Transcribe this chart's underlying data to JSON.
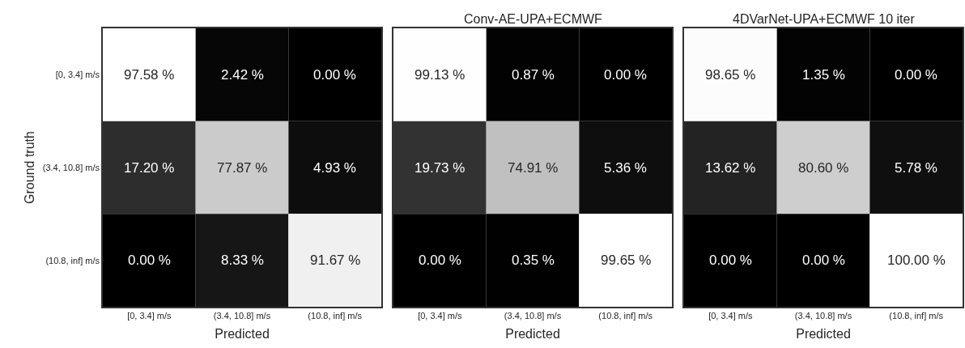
{
  "chart_data": [
    {
      "type": "heatmap",
      "xlabel": "Predicted",
      "ylabel": "Ground truth",
      "categories": [
        "[0, 3.4] m/s",
        "(3.4, 10.8] m/s",
        "(10.8, inf] m/s"
      ],
      "y_categories": [
        "[0, 3.4] m/s",
        "(3.4, 10.8] m/s",
        "(10.8, inf] m/s"
      ],
      "cells": [
        [
          97.58,
          2.42,
          0.0
        ],
        [
          17.2,
          77.87,
          4.93
        ],
        [
          0.0,
          8.33,
          91.67
        ]
      ],
      "cell_labels": [
        [
          "97.58 %",
          "2.42 %",
          "0.00 %"
        ],
        [
          "17.20 %",
          "77.87 %",
          "4.93 %"
        ],
        [
          "0.00 %",
          "8.33 %",
          "91.67 %"
        ]
      ]
    },
    {
      "type": "heatmap",
      "title": "Conv-AE-UPA+ECMWF",
      "xlabel": "Predicted",
      "categories": [
        "[0, 3.4] m/s",
        "(3.4, 10.8] m/s",
        "(10.8, inf] m/s"
      ],
      "y_categories": [
        "[0, 3.4] m/s",
        "(3.4, 10.8] m/s",
        "(10.8, inf] m/s"
      ],
      "tick_labels": "x",
      "cells": [
        [
          99.13,
          0.87,
          0.0
        ],
        [
          19.73,
          74.91,
          5.36
        ],
        [
          0.0,
          0.35,
          99.65
        ]
      ],
      "cell_labels": [
        [
          "99.13 %",
          "0.87 %",
          "0.00 %"
        ],
        [
          "19.73 %",
          "74.91 %",
          "5.36 %"
        ],
        [
          "0.00 %",
          "0.35 %",
          "99.65 %"
        ]
      ]
    },
    {
      "type": "heatmap",
      "title": "4DVarNet-UPA+ECMWF 10 iter",
      "xlabel": "Predicted",
      "categories": [
        "[0, 3.4] m/s",
        "(3.4, 10.8] m/s",
        "(10.8, inf] m/s"
      ],
      "y_categories": [
        "[0, 3.4] m/s",
        "(3.4, 10.8] m/s",
        "(10.8, inf] m/s"
      ],
      "tick_labels": "x",
      "cells": [
        [
          98.65,
          1.35,
          0.0
        ],
        [
          13.62,
          80.6,
          5.78
        ],
        [
          0.0,
          0.0,
          100.0
        ]
      ],
      "cell_labels": [
        [
          "98.65 %",
          "1.35 %",
          "0.00 %"
        ],
        [
          "13.62 %",
          "80.60 %",
          "5.78 %"
        ],
        [
          "0.00 %",
          "0.00 %",
          "100.00 %"
        ]
      ]
    }
  ]
}
